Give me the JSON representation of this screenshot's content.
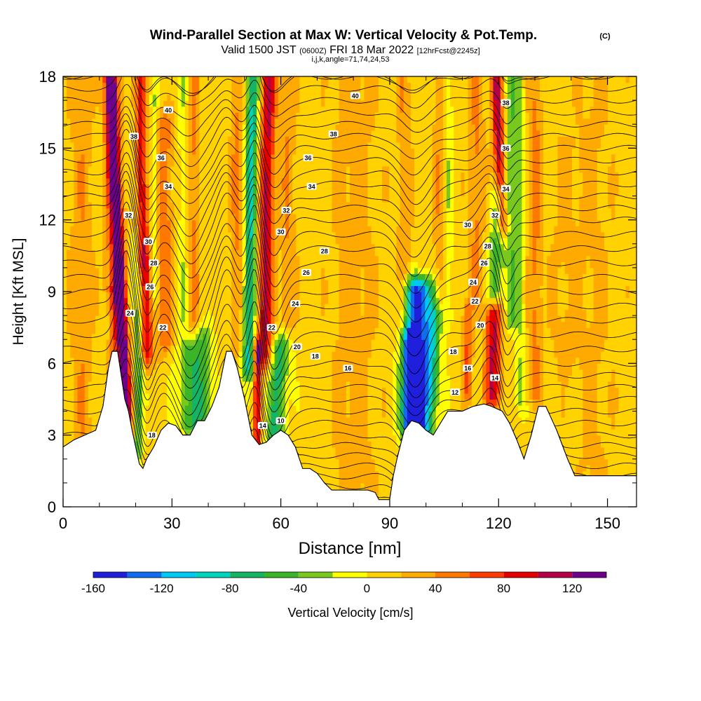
{
  "header": {
    "title": "Wind-Parallel Section at Max W: Vertical Velocity & Pot.Temp.",
    "copyright": "(C)",
    "valid_prefix": "Valid 1500 JST",
    "valid_utc": "(0600Z)",
    "valid_date": "FRI 18 Mar 2022",
    "forecast": "[12hrFcst@2245z]",
    "indices": "i,j,k,angle=71,74,24,53"
  },
  "chart_data": {
    "type": "heatmap",
    "title": "Wind-Parallel Section at Max W: Vertical Velocity & Pot.Temp.",
    "xlabel": "Distance [nm]",
    "ylabel": "Height [Kft MSL]",
    "xlim": [
      0,
      158
    ],
    "ylim": [
      0,
      18
    ],
    "xticks": [
      "0",
      "30",
      "60",
      "90",
      "120",
      "150"
    ],
    "yticks": [
      "0",
      "3",
      "6",
      "9",
      "12",
      "15",
      "18"
    ],
    "colorbar": {
      "label": "Vertical Velocity [cm/s]",
      "ticks": [
        "-160",
        "-120",
        "-80",
        "-40",
        "0",
        "40",
        "80",
        "120"
      ],
      "min": -160,
      "max": 140,
      "step": 20,
      "colors": [
        "#1f1fdc",
        "#0f6ef0",
        "#00c8f5",
        "#00d2be",
        "#14b464",
        "#3cb428",
        "#78c81e",
        "#ffff00",
        "#ffd200",
        "#ffaa00",
        "#ff7800",
        "#ff3c00",
        "#e60000",
        "#b40046",
        "#6e008c"
      ]
    },
    "terrain_profile": [
      [
        0,
        2.5
      ],
      [
        3,
        2.8
      ],
      [
        6,
        3.0
      ],
      [
        9,
        3.2
      ],
      [
        11,
        4.2
      ],
      [
        12.5,
        5.8
      ],
      [
        13.5,
        6.5
      ],
      [
        15,
        6.5
      ],
      [
        16,
        5.5
      ],
      [
        17,
        4.5
      ],
      [
        18,
        4.0
      ],
      [
        19,
        3.2
      ],
      [
        20,
        2.5
      ],
      [
        21,
        1.8
      ],
      [
        22,
        1.6
      ],
      [
        23,
        2.0
      ],
      [
        25,
        2.5
      ],
      [
        27,
        3.2
      ],
      [
        29,
        3.5
      ],
      [
        31,
        3.4
      ],
      [
        33,
        3.0
      ],
      [
        35,
        3.0
      ],
      [
        37,
        3.6
      ],
      [
        39,
        3.6
      ],
      [
        41,
        4.2
      ],
      [
        43,
        5.0
      ],
      [
        45,
        6.5
      ],
      [
        46.5,
        6.5
      ],
      [
        48,
        5.8
      ],
      [
        50,
        4.5
      ],
      [
        52,
        3.0
      ],
      [
        54,
        2.6
      ],
      [
        56,
        2.7
      ],
      [
        58,
        3.0
      ],
      [
        60,
        3.2
      ],
      [
        62,
        3.0
      ],
      [
        64,
        2.5
      ],
      [
        66,
        1.6
      ],
      [
        68,
        1.6
      ],
      [
        70,
        1.4
      ],
      [
        72,
        1.0
      ],
      [
        74,
        0.7
      ],
      [
        80,
        0.7
      ],
      [
        84,
        0.7
      ],
      [
        86,
        0.6
      ],
      [
        87,
        0.3
      ],
      [
        90,
        0.3
      ],
      [
        91,
        1.3
      ],
      [
        92,
        2.0
      ],
      [
        94,
        3.2
      ],
      [
        96,
        3.6
      ],
      [
        98,
        3.5
      ],
      [
        100,
        3.2
      ],
      [
        102,
        3.0
      ],
      [
        104,
        3.5
      ],
      [
        106,
        4.0
      ],
      [
        110,
        4.0
      ],
      [
        113,
        4.2
      ],
      [
        116,
        4.3
      ],
      [
        118,
        4.2
      ],
      [
        121,
        4.0
      ],
      [
        123,
        3.5
      ],
      [
        125,
        2.8
      ],
      [
        127,
        2.0
      ],
      [
        129,
        3.0
      ],
      [
        131,
        4.2
      ],
      [
        133,
        4.2
      ],
      [
        136,
        3.2
      ],
      [
        139,
        2.0
      ],
      [
        141,
        1.3
      ],
      [
        150,
        1.3
      ],
      [
        158,
        1.3
      ]
    ],
    "velocity_features": [
      {
        "x": 17.5,
        "z0": 3.2,
        "z1": 18,
        "peak": 150,
        "width": 1.6,
        "tilt": -0.3
      },
      {
        "x": 23,
        "z0": 6.5,
        "z1": 18,
        "peak": 90,
        "width": 1.8,
        "tilt": -0.2
      },
      {
        "x": 28,
        "z0": 7,
        "z1": 16,
        "peak": 45,
        "width": 2.2,
        "tilt": 0
      },
      {
        "x": 14,
        "z0": 5,
        "z1": 9,
        "peak": 40,
        "width": 1.5,
        "tilt": 0
      },
      {
        "x": 13,
        "z0": 9,
        "z1": 18,
        "peak": 30,
        "width": 2.0,
        "tilt": 0
      },
      {
        "x": 20.5,
        "z0": 2.5,
        "z1": 9,
        "peak": -60,
        "width": 1.3,
        "tilt": 0.1
      },
      {
        "x": 20,
        "z0": 10,
        "z1": 18,
        "peak": -30,
        "width": 1.2,
        "tilt": 0
      },
      {
        "x": 25,
        "z0": 9,
        "z1": 17,
        "peak": -30,
        "width": 1.0,
        "tilt": 0
      },
      {
        "x": 35,
        "z0": 3.5,
        "z1": 6.5,
        "peak": -60,
        "width": 3.5,
        "tilt": 0
      },
      {
        "x": 39,
        "z0": 3.2,
        "z1": 7.0,
        "peak": -45,
        "width": 2.5,
        "tilt": 0
      },
      {
        "x": 33,
        "z0": 8,
        "z1": 18,
        "peak": -25,
        "width": 1.2,
        "tilt": 0
      },
      {
        "x": 36,
        "z0": 8,
        "z1": 18,
        "peak": 35,
        "width": 1.5,
        "tilt": 0
      },
      {
        "x": 51,
        "z0": 6,
        "z1": 18,
        "peak": -95,
        "width": 1.8,
        "tilt": 0.1
      },
      {
        "x": 55.5,
        "z0": 6.5,
        "z1": 18,
        "peak": 95,
        "width": 2.0,
        "tilt": 0.1
      },
      {
        "x": 53.5,
        "z0": 2.8,
        "z1": 6.5,
        "peak": 90,
        "width": 1.0,
        "tilt": 0
      },
      {
        "x": 58.5,
        "z0": 3.0,
        "z1": 6.5,
        "peak": -75,
        "width": 2.6,
        "tilt": 0.4
      },
      {
        "x": 48,
        "z0": 7,
        "z1": 18,
        "peak": 35,
        "width": 1.8,
        "tilt": 0
      },
      {
        "x": 62,
        "z0": 8,
        "z1": 18,
        "peak": 30,
        "width": 2.0,
        "tilt": 0
      },
      {
        "x": 98,
        "z0": 3.2,
        "z1": 9,
        "peak": -160,
        "width": 4.0,
        "tilt": 0
      },
      {
        "x": 95,
        "z0": 3.5,
        "z1": 7,
        "peak": -80,
        "width": 1.5,
        "tilt": 0
      },
      {
        "x": 102,
        "z0": 5,
        "z1": 8,
        "peak": -40,
        "width": 2.0,
        "tilt": 0
      },
      {
        "x": 94,
        "z0": 8,
        "z1": 18,
        "peak": 30,
        "width": 1.8,
        "tilt": 0
      },
      {
        "x": 106,
        "z0": 8,
        "z1": 18,
        "peak": -30,
        "width": 1.5,
        "tilt": 0
      },
      {
        "x": 104,
        "z0": 9,
        "z1": 18,
        "peak": 30,
        "width": 1.8,
        "tilt": 0
      },
      {
        "x": 118.5,
        "z0": 4.8,
        "z1": 8.0,
        "peak": 95,
        "width": 2.2,
        "tilt": 0
      },
      {
        "x": 111.5,
        "z0": 5,
        "z1": 8,
        "peak": 55,
        "width": 1.3,
        "tilt": 0
      },
      {
        "x": 121,
        "z0": 12,
        "z1": 18,
        "peak": 100,
        "width": 1.5,
        "tilt": -0.3
      },
      {
        "x": 123.5,
        "z0": 8,
        "z1": 18,
        "peak": -45,
        "width": 1.6,
        "tilt": 0
      },
      {
        "x": 119,
        "z0": 9,
        "z1": 13,
        "peak": -60,
        "width": 2.2,
        "tilt": 0.3
      },
      {
        "x": 114,
        "z0": 9,
        "z1": 18,
        "peak": 35,
        "width": 2.0,
        "tilt": 0
      },
      {
        "x": 126,
        "z0": 4.5,
        "z1": 18,
        "peak": -30,
        "width": 1.5,
        "tilt": 0
      },
      {
        "x": 130,
        "z0": 5,
        "z1": 18,
        "peak": 35,
        "width": 2.0,
        "tilt": 0
      },
      {
        "x": 138,
        "z0": 6,
        "z1": 15,
        "peak": 15,
        "width": 4.0,
        "tilt": 0
      },
      {
        "x": 80,
        "z0": 1,
        "z1": 18,
        "peak": 20,
        "width": 6.0,
        "tilt": 0
      },
      {
        "x": 146,
        "z0": 1,
        "z1": 18,
        "peak": 15,
        "width": 5.0,
        "tilt": 0
      },
      {
        "x": 5,
        "z0": 3,
        "z1": 18,
        "peak": 25,
        "width": 3.0,
        "tilt": 0
      }
    ],
    "theta_contours": {
      "min": 6,
      "max": 42,
      "interval": 1,
      "base_levels": [
        [
          0,
          6
        ],
        [
          3,
          13
        ],
        [
          6,
          19
        ],
        [
          9,
          24
        ],
        [
          12,
          29
        ],
        [
          15,
          35
        ],
        [
          18,
          41
        ]
      ],
      "waves": [
        {
          "x": 17.5,
          "amp": 3.0,
          "width": 3.0
        },
        {
          "x": 23,
          "amp": -2.0,
          "width": 3.0
        },
        {
          "x": 35,
          "amp": -2.5,
          "width": 5.0
        },
        {
          "x": 45,
          "amp": 1.5,
          "width": 3.0
        },
        {
          "x": 53,
          "amp": 2.5,
          "width": 2.5
        },
        {
          "x": 58,
          "amp": -2.0,
          "width": 4.0
        },
        {
          "x": 97,
          "amp": -2.2,
          "width": 5.0
        },
        {
          "x": 118,
          "amp": 1.5,
          "width": 4.0
        },
        {
          "x": 122,
          "amp": -1.5,
          "width": 2.5
        }
      ]
    },
    "theta_labels": [
      {
        "x": 29,
        "z": 16.6,
        "text": "40"
      },
      {
        "x": 19.5,
        "z": 15.5,
        "text": "38"
      },
      {
        "x": 27,
        "z": 14.6,
        "text": "36"
      },
      {
        "x": 29,
        "z": 13.4,
        "text": "34"
      },
      {
        "x": 18,
        "z": 12.2,
        "text": "32"
      },
      {
        "x": 23.5,
        "z": 11.1,
        "text": "30"
      },
      {
        "x": 25,
        "z": 10.2,
        "text": "28"
      },
      {
        "x": 24,
        "z": 9.2,
        "text": "26"
      },
      {
        "x": 18.5,
        "z": 8.1,
        "text": "24"
      },
      {
        "x": 27.5,
        "z": 7.5,
        "text": "22"
      },
      {
        "x": 24.5,
        "z": 3.0,
        "text": "18"
      },
      {
        "x": 80.5,
        "z": 17.2,
        "text": "40"
      },
      {
        "x": 74.5,
        "z": 15.6,
        "text": "38"
      },
      {
        "x": 67.5,
        "z": 14.6,
        "text": "36"
      },
      {
        "x": 68.5,
        "z": 13.4,
        "text": "34"
      },
      {
        "x": 61.5,
        "z": 12.4,
        "text": "32"
      },
      {
        "x": 60,
        "z": 11.5,
        "text": "30"
      },
      {
        "x": 72,
        "z": 10.7,
        "text": "28"
      },
      {
        "x": 67,
        "z": 9.8,
        "text": "26"
      },
      {
        "x": 64,
        "z": 8.5,
        "text": "24"
      },
      {
        "x": 57.5,
        "z": 7.5,
        "text": "22"
      },
      {
        "x": 64.5,
        "z": 6.7,
        "text": "20"
      },
      {
        "x": 69.5,
        "z": 6.3,
        "text": "18"
      },
      {
        "x": 78.5,
        "z": 5.8,
        "text": "16"
      },
      {
        "x": 55,
        "z": 3.4,
        "text": "14"
      },
      {
        "x": 60,
        "z": 3.6,
        "text": "10"
      },
      {
        "x": 122,
        "z": 16.9,
        "text": "38"
      },
      {
        "x": 122,
        "z": 15.0,
        "text": "36"
      },
      {
        "x": 122,
        "z": 13.3,
        "text": "34"
      },
      {
        "x": 119,
        "z": 12.2,
        "text": "32"
      },
      {
        "x": 111.5,
        "z": 11.8,
        "text": "30"
      },
      {
        "x": 117,
        "z": 10.9,
        "text": "28"
      },
      {
        "x": 116,
        "z": 10.2,
        "text": "26"
      },
      {
        "x": 113,
        "z": 9.4,
        "text": "24"
      },
      {
        "x": 113.5,
        "z": 8.6,
        "text": "22"
      },
      {
        "x": 115,
        "z": 7.6,
        "text": "20"
      },
      {
        "x": 107.5,
        "z": 6.5,
        "text": "18"
      },
      {
        "x": 111.5,
        "z": 5.8,
        "text": "16"
      },
      {
        "x": 119,
        "z": 5.4,
        "text": "14"
      },
      {
        "x": 108,
        "z": 4.8,
        "text": "12"
      }
    ]
  }
}
